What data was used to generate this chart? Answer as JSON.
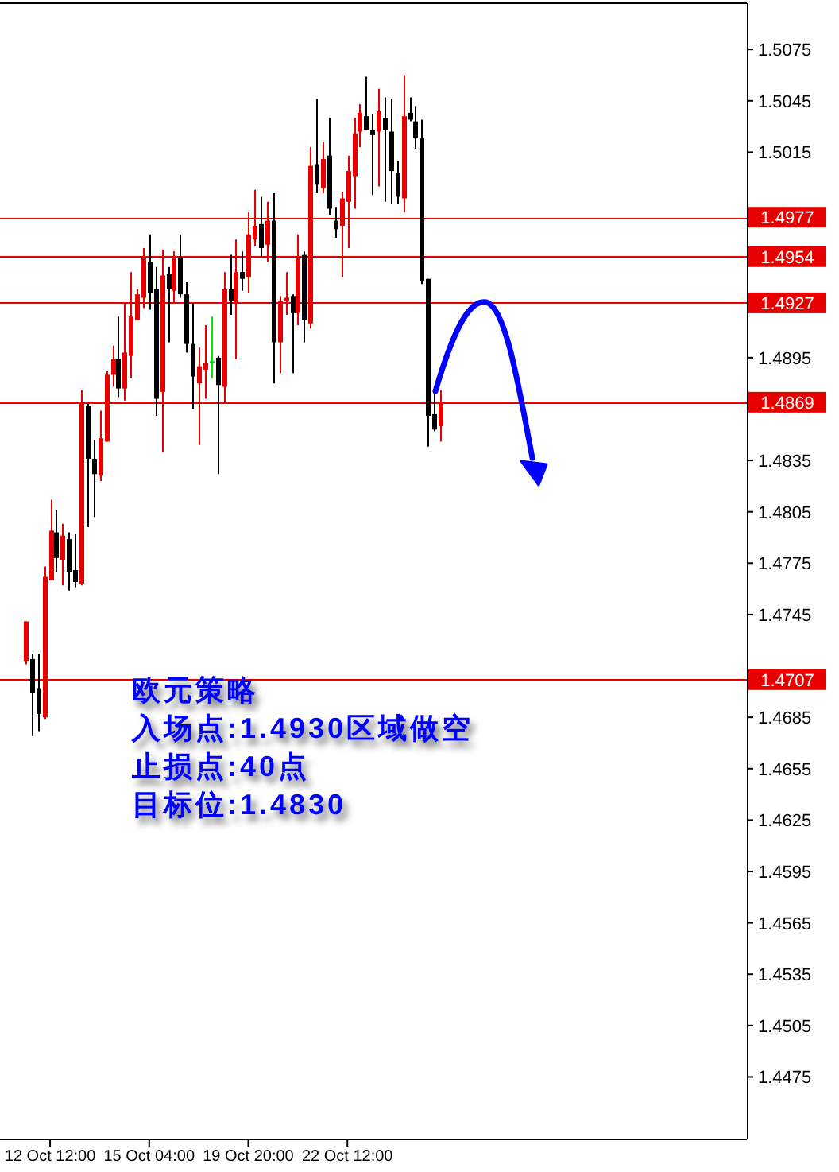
{
  "chart_data": {
    "type": "candlestick",
    "categories": [
      null,
      null,
      null,
      null,
      "12 Oct 12:00",
      null,
      null,
      null,
      null,
      null,
      null,
      null,
      null,
      null,
      null,
      null,
      null,
      null,
      null,
      null,
      "15 Oct 04:00",
      null,
      null,
      null,
      null,
      null,
      null,
      null,
      null,
      null,
      null,
      null,
      null,
      null,
      null,
      null,
      "19 Oct 20:00",
      null,
      null,
      null,
      null,
      null,
      null,
      null,
      null,
      null,
      null,
      null,
      null,
      null,
      null,
      null,
      "22 Oct 12:00",
      null,
      null,
      null,
      null,
      null,
      null,
      null,
      null,
      null,
      null,
      null,
      null,
      null,
      null,
      null,
      null,
      null,
      null,
      null,
      null,
      null,
      null,
      null,
      null,
      null,
      null,
      null,
      null,
      null,
      null,
      null,
      null,
      null,
      null,
      null,
      null,
      null,
      null,
      null,
      null,
      null,
      null,
      null,
      null,
      null,
      null,
      null,
      null,
      null,
      null,
      null,
      null,
      null,
      null,
      null,
      null,
      null,
      null,
      null,
      null,
      null,
      null,
      null,
      null
    ],
    "ohlc": [
      [
        1.4718,
        1.4741,
        1.4716,
        1.4741
      ],
      [
        1.4719,
        1.4722,
        1.4674,
        1.4699
      ],
      [
        1.4702,
        1.4722,
        1.4677,
        1.4687
      ],
      [
        1.4685,
        1.4773,
        1.4684,
        1.4767
      ],
      [
        1.4765,
        1.4812,
        1.4765,
        1.4794
      ],
      [
        1.4793,
        1.4806,
        1.477,
        1.4778
      ],
      [
        1.4777,
        1.4798,
        1.4762,
        1.4791
      ],
      [
        1.4789,
        1.4793,
        1.4759,
        1.477
      ],
      [
        1.4771,
        1.4792,
        1.4761,
        1.4764
      ],
      [
        1.4763,
        1.4876,
        1.4762,
        1.4868
      ],
      [
        1.4867,
        1.4868,
        1.4796,
        1.4836
      ],
      [
        1.4836,
        1.4847,
        1.4802,
        1.4827
      ],
      [
        1.4826,
        1.4864,
        1.4823,
        1.4848
      ],
      [
        1.4846,
        1.4887,
        1.4846,
        1.4885
      ],
      [
        1.4885,
        1.4902,
        1.4878,
        1.4894
      ],
      [
        1.4894,
        1.4919,
        1.4872,
        1.4877
      ],
      [
        1.4877,
        1.4927,
        1.487,
        1.4898
      ],
      [
        1.4896,
        1.4945,
        1.4883,
        1.4919
      ],
      [
        1.4917,
        1.4935,
        1.4917,
        1.4932
      ],
      [
        1.493,
        1.4959,
        1.4924,
        1.4953
      ],
      [
        1.4951,
        1.4967,
        1.4923,
        1.4933
      ],
      [
        1.4935,
        1.4948,
        1.4861,
        1.4871
      ],
      [
        1.4875,
        1.4958,
        1.484,
        1.4943
      ],
      [
        1.4944,
        1.4948,
        1.4904,
        1.4935
      ],
      [
        1.4934,
        1.4957,
        1.4927,
        1.4953
      ],
      [
        1.4953,
        1.4967,
        1.493,
        1.4932
      ],
      [
        1.4932,
        1.4939,
        1.4898,
        1.4903
      ],
      [
        1.4903,
        1.4927,
        1.4865,
        1.4884
      ],
      [
        1.488,
        1.4901,
        1.4844,
        1.489
      ],
      [
        1.4888,
        1.4914,
        1.4871,
        1.4892
      ],
      [
        1.4893,
        1.4919,
        1.4883,
        1.4893
      ],
      [
        1.4895,
        1.4896,
        1.4827,
        1.4879
      ],
      [
        1.4878,
        1.4945,
        1.4869,
        1.4935
      ],
      [
        1.4935,
        1.4955,
        1.492,
        1.4928
      ],
      [
        1.4927,
        1.4964,
        1.4894,
        1.4945
      ],
      [
        1.4945,
        1.4957,
        1.4934,
        1.4941
      ],
      [
        1.4942,
        1.498,
        1.4933,
        1.4967
      ],
      [
        1.4964,
        1.4993,
        1.496,
        1.4972
      ],
      [
        1.4973,
        1.4989,
        1.4954,
        1.4959
      ],
      [
        1.4961,
        1.4986,
        1.4951,
        1.4975
      ],
      [
        1.4975,
        1.4991,
        1.488,
        1.4904
      ],
      [
        1.4904,
        1.4931,
        1.4886,
        1.4928
      ],
      [
        1.4928,
        1.4945,
        1.492,
        1.493
      ],
      [
        1.4931,
        1.4932,
        1.4886,
        1.4921
      ],
      [
        1.4921,
        1.4967,
        1.4914,
        1.4953
      ],
      [
        1.4955,
        1.4957,
        1.4904,
        1.4917
      ],
      [
        1.4915,
        1.5018,
        1.4912,
        1.5007
      ],
      [
        1.5008,
        1.5046,
        1.4991,
        1.4996
      ],
      [
        1.4994,
        1.5021,
        1.4991,
        1.5011
      ],
      [
        1.5013,
        1.5035,
        1.4978,
        1.4982
      ],
      [
        1.4975,
        1.4983,
        1.4965,
        1.497
      ],
      [
        1.4972,
        1.4992,
        1.4942,
        1.4988
      ],
      [
        1.4986,
        1.5013,
        1.4959,
        1.5004
      ],
      [
        1.5001,
        1.5035,
        1.4982,
        1.5026
      ],
      [
        1.5027,
        1.5043,
        1.5018,
        1.5038
      ],
      [
        1.5036,
        1.5059,
        1.5028,
        1.5028
      ],
      [
        1.5028,
        1.5037,
        1.499,
        1.5025
      ],
      [
        1.5027,
        1.5052,
        1.4995,
        1.5039
      ],
      [
        1.5035,
        1.5047,
        1.4986,
        1.5028
      ],
      [
        1.5027,
        1.5046,
        1.4985,
        1.5004
      ],
      [
        1.5003,
        1.501,
        1.4985,
        1.4989
      ],
      [
        1.4988,
        1.506,
        1.498,
        1.5036
      ],
      [
        1.5038,
        1.5047,
        1.5033,
        1.5034
      ],
      [
        1.5033,
        1.5042,
        1.5017,
        1.5023
      ],
      [
        1.5023,
        1.5034,
        1.4938,
        1.494
      ],
      [
        1.4941,
        1.4941,
        1.4843,
        1.4861
      ],
      [
        1.4862,
        1.4877,
        1.4852,
        1.4853
      ],
      [
        1.4855,
        1.4876,
        1.4846,
        1.4868
      ],
      null,
      null,
      null,
      null,
      null,
      null,
      null,
      null,
      null,
      null,
      null,
      null,
      null,
      null,
      null,
      null,
      null,
      null,
      null,
      null,
      null,
      null,
      null,
      null,
      null,
      null,
      null,
      null,
      null,
      null,
      null,
      null,
      null,
      null,
      null,
      null,
      null,
      null,
      null,
      null,
      null,
      null,
      null,
      null,
      null,
      null,
      null,
      null,
      null
    ],
    "colors": [
      "#e60000",
      "#000000",
      "#000000",
      "#e60000",
      "#e60000",
      "#000000",
      "#e60000",
      "#000000",
      "#000000",
      "#e60000",
      "#000000",
      "#000000",
      "#e60000",
      "#e60000",
      "#e60000",
      "#000000",
      "#e60000",
      "#e60000",
      "#e60000",
      "#e60000",
      "#000000",
      "#000000",
      "#e60000",
      "#000000",
      "#e60000",
      "#000000",
      "#000000",
      "#000000",
      "#e60000",
      "#e60000",
      "#00e600",
      "#000000",
      "#e60000",
      "#000000",
      "#e60000",
      "#000000",
      "#e60000",
      "#e60000",
      "#000000",
      "#e60000",
      "#000000",
      "#e60000",
      "#e60000",
      "#000000",
      "#e60000",
      "#000000",
      "#e60000",
      "#000000",
      "#e60000",
      "#000000",
      "#000000",
      "#e60000",
      "#e60000",
      "#e60000",
      "#e60000",
      "#000000",
      "#000000",
      "#e60000",
      "#000000",
      "#000000",
      "#000000",
      "#e60000",
      "#000000",
      "#000000",
      "#000000",
      "#000000",
      "#000000",
      "#e60000",
      null,
      null,
      null,
      null,
      null,
      null,
      null,
      null,
      null,
      null,
      null,
      null,
      null,
      null,
      null,
      null,
      null,
      null,
      null,
      null,
      null,
      null,
      null,
      null,
      null,
      null,
      null,
      null,
      null,
      null,
      null,
      null,
      null,
      null,
      null,
      null,
      null,
      null,
      null,
      null,
      null,
      null,
      null,
      null,
      null,
      null,
      null,
      null,
      null
    ],
    "ylim": [
      1.4439,
      1.5102
    ],
    "yticks": [
      1.5075,
      1.5045,
      1.5015,
      {
        "value": 1.4955,
        "label": null
      },
      {
        "value": 1.4925,
        "label": null
      },
      1.4895,
      1.4835,
      1.4805,
      1.4775,
      1.4745,
      1.4685,
      1.4655,
      1.4625,
      1.4595,
      1.4565,
      1.4535,
      1.4505,
      1.4475
    ],
    "ref_lines": [
      {
        "axis": "y",
        "value": 1.4977,
        "label": "1.4977",
        "color": "#e60000"
      },
      {
        "axis": "y",
        "value": 1.4954,
        "label": "1.4954",
        "color": "#e60000"
      },
      {
        "axis": "y",
        "value": 1.4927,
        "label": "1.4927",
        "color": "#e60000"
      },
      {
        "axis": "y",
        "value": 1.4869,
        "label": "1.4869",
        "color": "#e60000"
      },
      {
        "axis": "y",
        "value": 1.4707,
        "label": "1.4707",
        "color": "#e60000"
      }
    ],
    "annotations": [
      "欧元策略",
      "入场点:1.4930区域做空",
      "止损点:40点",
      "目标位:1.4830"
    ]
  }
}
